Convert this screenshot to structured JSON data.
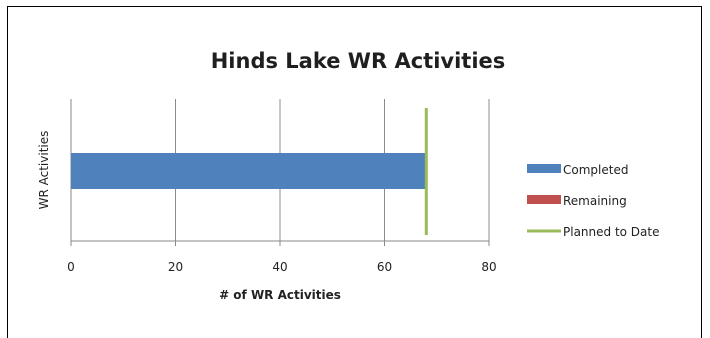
{
  "chart_data": {
    "type": "bar",
    "orientation": "horizontal",
    "title": "Hinds Lake WR Activities",
    "xlabel": "# of WR Activities",
    "ylabel": "WR Activities",
    "xlim": [
      0,
      80
    ],
    "x_ticks": [
      "0",
      "20",
      "40",
      "60",
      "80"
    ],
    "grid": "vertical major gridlines",
    "legend_position": "right",
    "series": [
      {
        "name": "Completed",
        "value": 68,
        "color": "#4f81bd",
        "kind": "bar"
      },
      {
        "name": "Remaining",
        "value": 0,
        "color": "#c0504d",
        "kind": "bar"
      },
      {
        "name": "Planned to Date",
        "value": 68,
        "color": "#9bbb59",
        "kind": "line"
      }
    ]
  }
}
